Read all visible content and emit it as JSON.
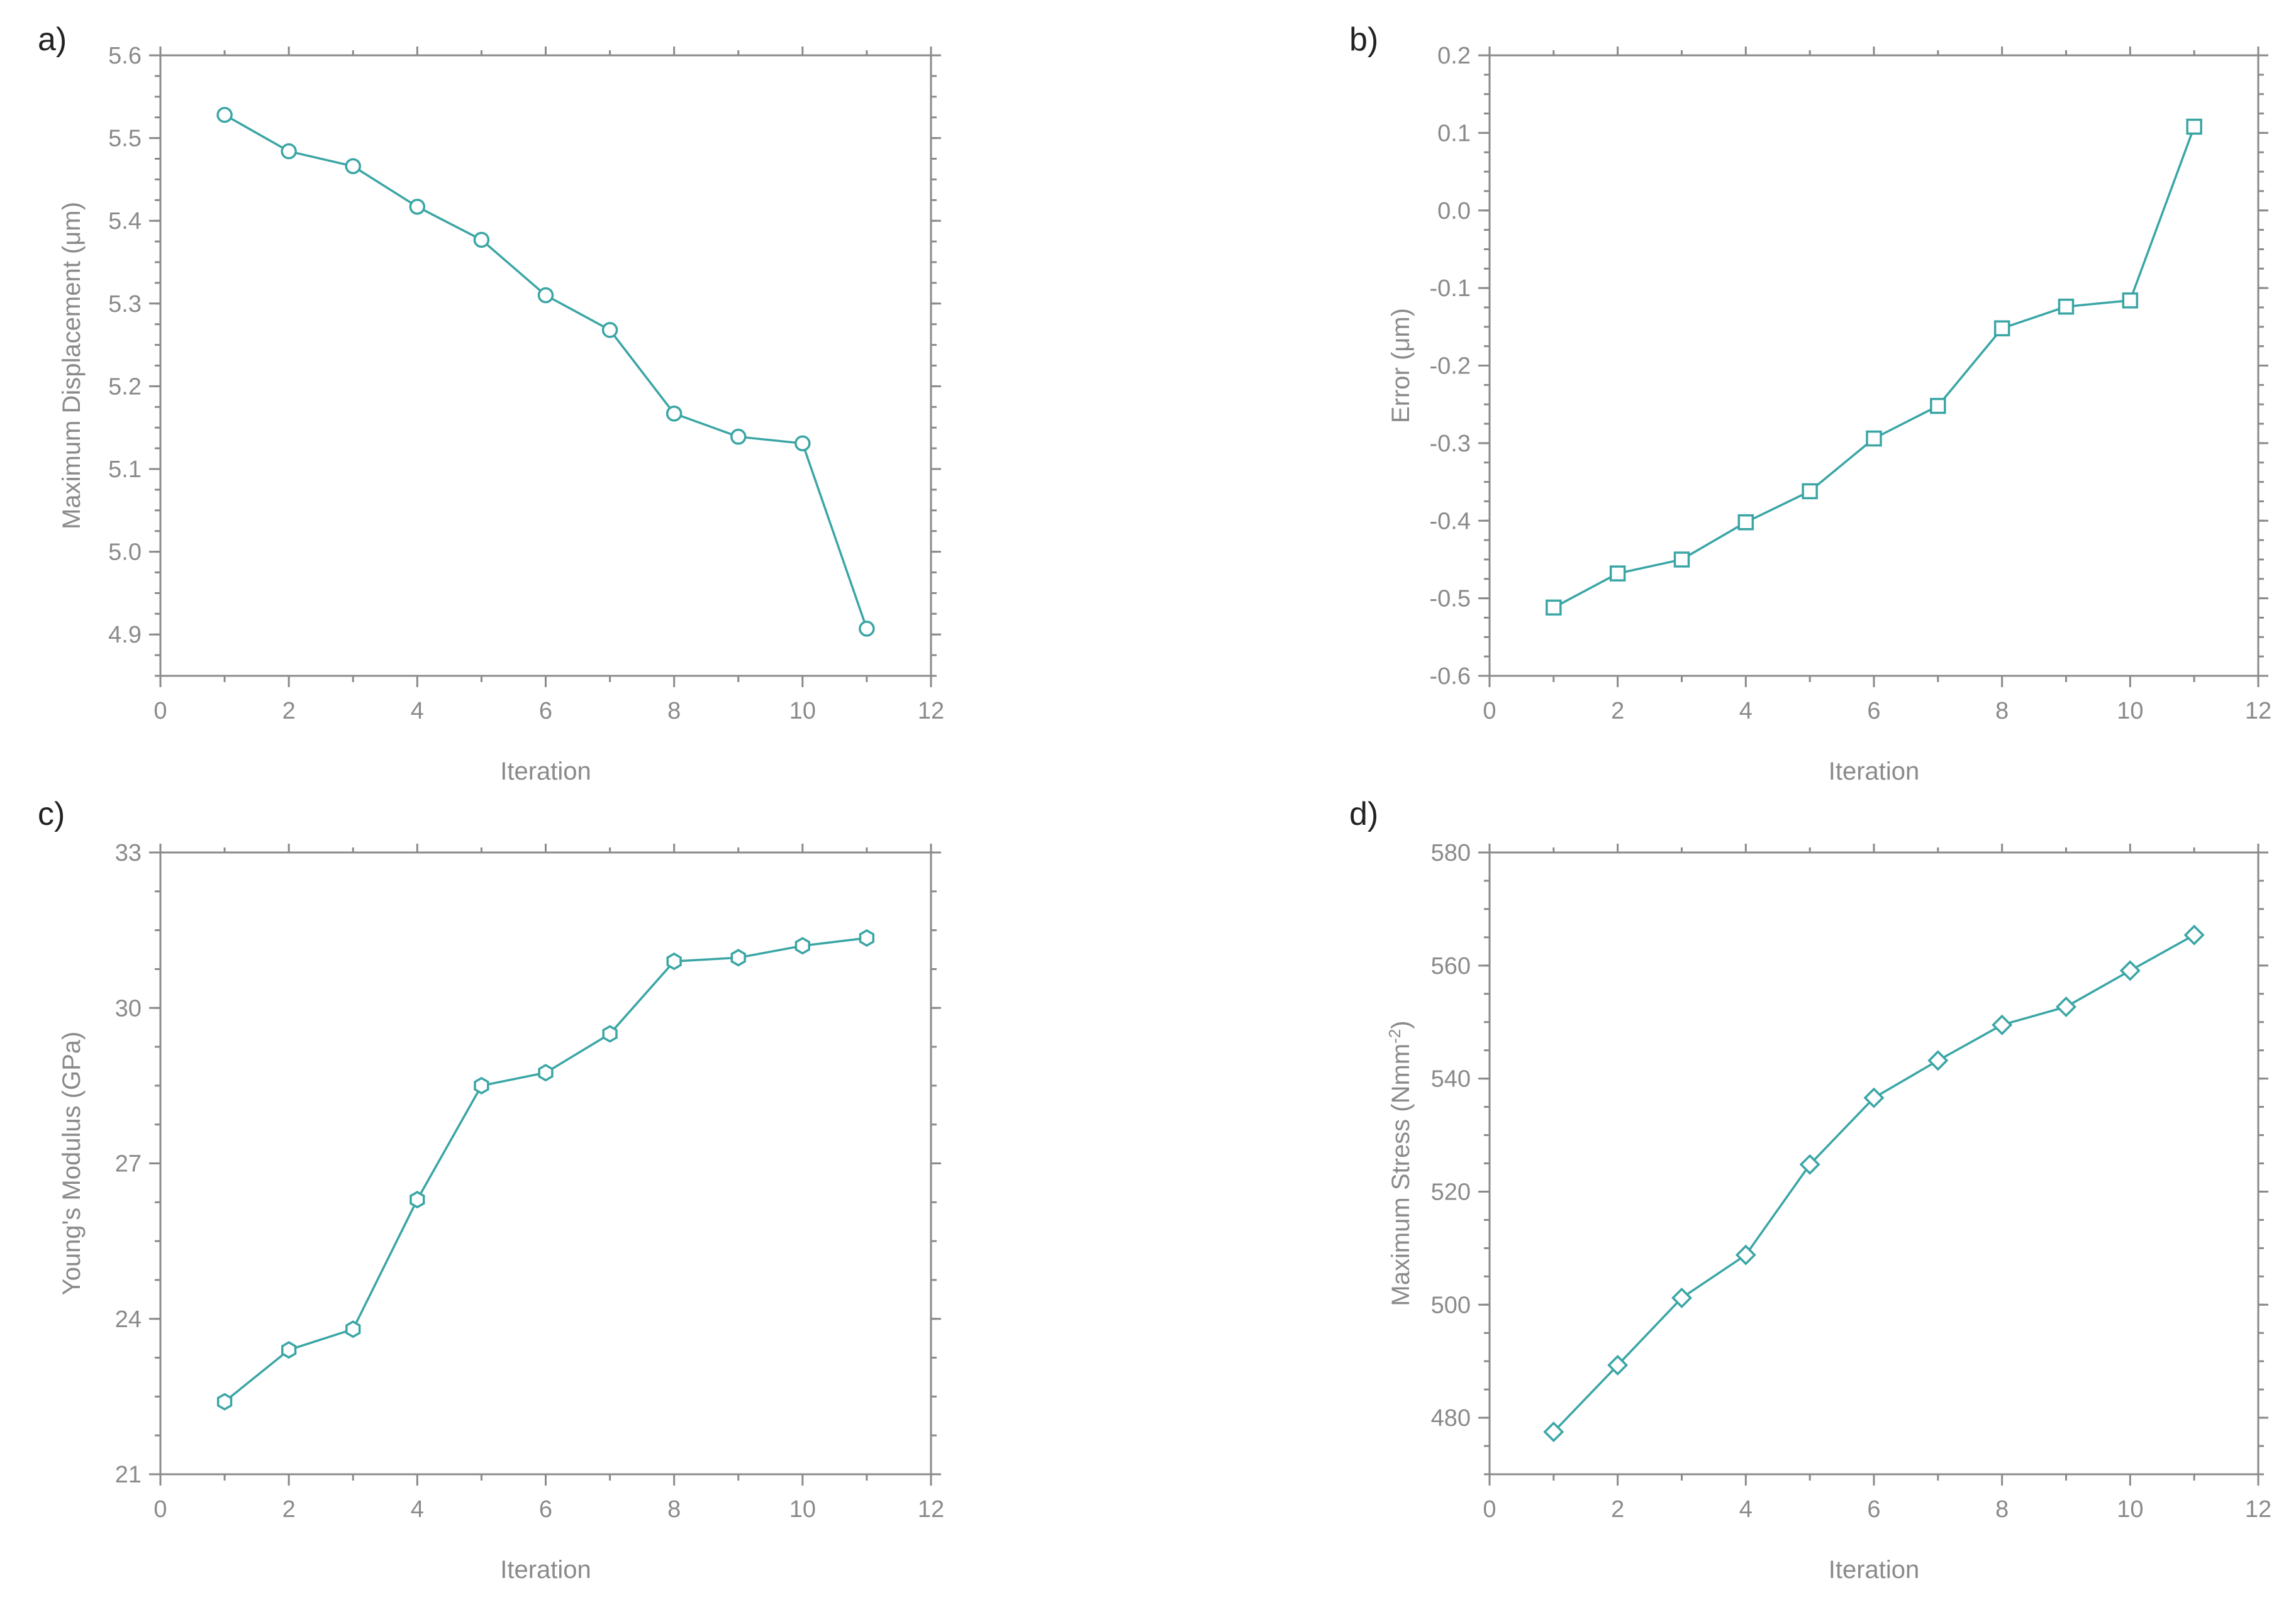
{
  "chart_data": [
    {
      "panel": "a)",
      "type": "line",
      "marker": "circle",
      "xlabel": "Iteration",
      "ylabel": "Maximum Displacement (μm)",
      "xlim": [
        0,
        12
      ],
      "ylim": [
        4.85,
        5.6
      ],
      "xticks": [
        0,
        2,
        4,
        6,
        8,
        10,
        12
      ],
      "xtick_labels": [
        "0",
        "2",
        "4",
        "6",
        "8",
        "10",
        "12"
      ],
      "yticks": [
        4.9,
        5.0,
        5.1,
        5.2,
        5.3,
        5.4,
        5.5,
        5.6
      ],
      "ytick_labels": [
        "4.9",
        "5.0",
        "5.1",
        "5.2",
        "5.3",
        "5.4",
        "5.5",
        "5.6"
      ],
      "x": [
        1,
        2,
        3,
        4,
        5,
        6,
        7,
        8,
        9,
        10,
        11
      ],
      "y": [
        5.528,
        5.484,
        5.466,
        5.417,
        5.377,
        5.31,
        5.268,
        5.167,
        5.139,
        5.131,
        4.907
      ],
      "color": "#3aa5a5"
    },
    {
      "panel": "b)",
      "type": "line",
      "marker": "square",
      "xlabel": "Iteration",
      "ylabel": "Error (μm)",
      "xlim": [
        0,
        12
      ],
      "ylim": [
        -0.6,
        0.2
      ],
      "xticks": [
        0,
        2,
        4,
        6,
        8,
        10,
        12
      ],
      "xtick_labels": [
        "0",
        "2",
        "4",
        "6",
        "8",
        "10",
        "12"
      ],
      "yticks": [
        -0.6,
        -0.5,
        -0.4,
        -0.3,
        -0.2,
        -0.1,
        0.0,
        0.1,
        0.2
      ],
      "ytick_labels": [
        "-0.6",
        "-0.5",
        "-0.4",
        "-0.3",
        "-0.2",
        "-0.1",
        "0.0",
        "0.1",
        "0.2"
      ],
      "x": [
        1,
        2,
        3,
        4,
        5,
        6,
        7,
        8,
        9,
        10,
        11
      ],
      "y": [
        -0.512,
        -0.468,
        -0.45,
        -0.402,
        -0.362,
        -0.294,
        -0.252,
        -0.152,
        -0.124,
        -0.116,
        0.108
      ],
      "color": "#3aa5a5"
    },
    {
      "panel": "c)",
      "type": "line",
      "marker": "hexagon",
      "xlabel": "Iteration",
      "ylabel": "Young's Modulus (GPa)",
      "xlim": [
        0,
        12
      ],
      "ylim": [
        21,
        33
      ],
      "xticks": [
        0,
        2,
        4,
        6,
        8,
        10,
        12
      ],
      "xtick_labels": [
        "0",
        "2",
        "4",
        "6",
        "8",
        "10",
        "12"
      ],
      "yticks": [
        21,
        24,
        27,
        30,
        33
      ],
      "ytick_labels": [
        "21",
        "24",
        "27",
        "30",
        "33"
      ],
      "x": [
        1,
        2,
        3,
        4,
        5,
        6,
        7,
        8,
        9,
        10,
        11
      ],
      "y": [
        22.4,
        23.4,
        23.8,
        26.3,
        28.5,
        28.75,
        29.5,
        30.9,
        30.97,
        31.2,
        31.35
      ],
      "color": "#3aa5a5"
    },
    {
      "panel": "d)",
      "type": "line",
      "marker": "diamond",
      "xlabel": "Iteration",
      "ylabel": "Maximum Stress (Nmm",
      "ylabel_sup": "-2",
      "ylabel_end": ")",
      "xlim": [
        0,
        12
      ],
      "ylim": [
        470,
        580
      ],
      "xticks": [
        0,
        2,
        4,
        6,
        8,
        10,
        12
      ],
      "xtick_labels": [
        "0",
        "2",
        "4",
        "6",
        "8",
        "10",
        "12"
      ],
      "yticks": [
        480,
        500,
        520,
        540,
        560,
        580
      ],
      "ytick_labels": [
        "480",
        "500",
        "520",
        "540",
        "560",
        "580"
      ],
      "x": [
        1,
        2,
        3,
        4,
        5,
        6,
        7,
        8,
        9,
        10,
        11
      ],
      "y": [
        477.5,
        489.3,
        501.2,
        508.8,
        524.8,
        536.6,
        543.2,
        549.5,
        552.7,
        559.1,
        565.4
      ],
      "color": "#3aa5a5"
    }
  ]
}
